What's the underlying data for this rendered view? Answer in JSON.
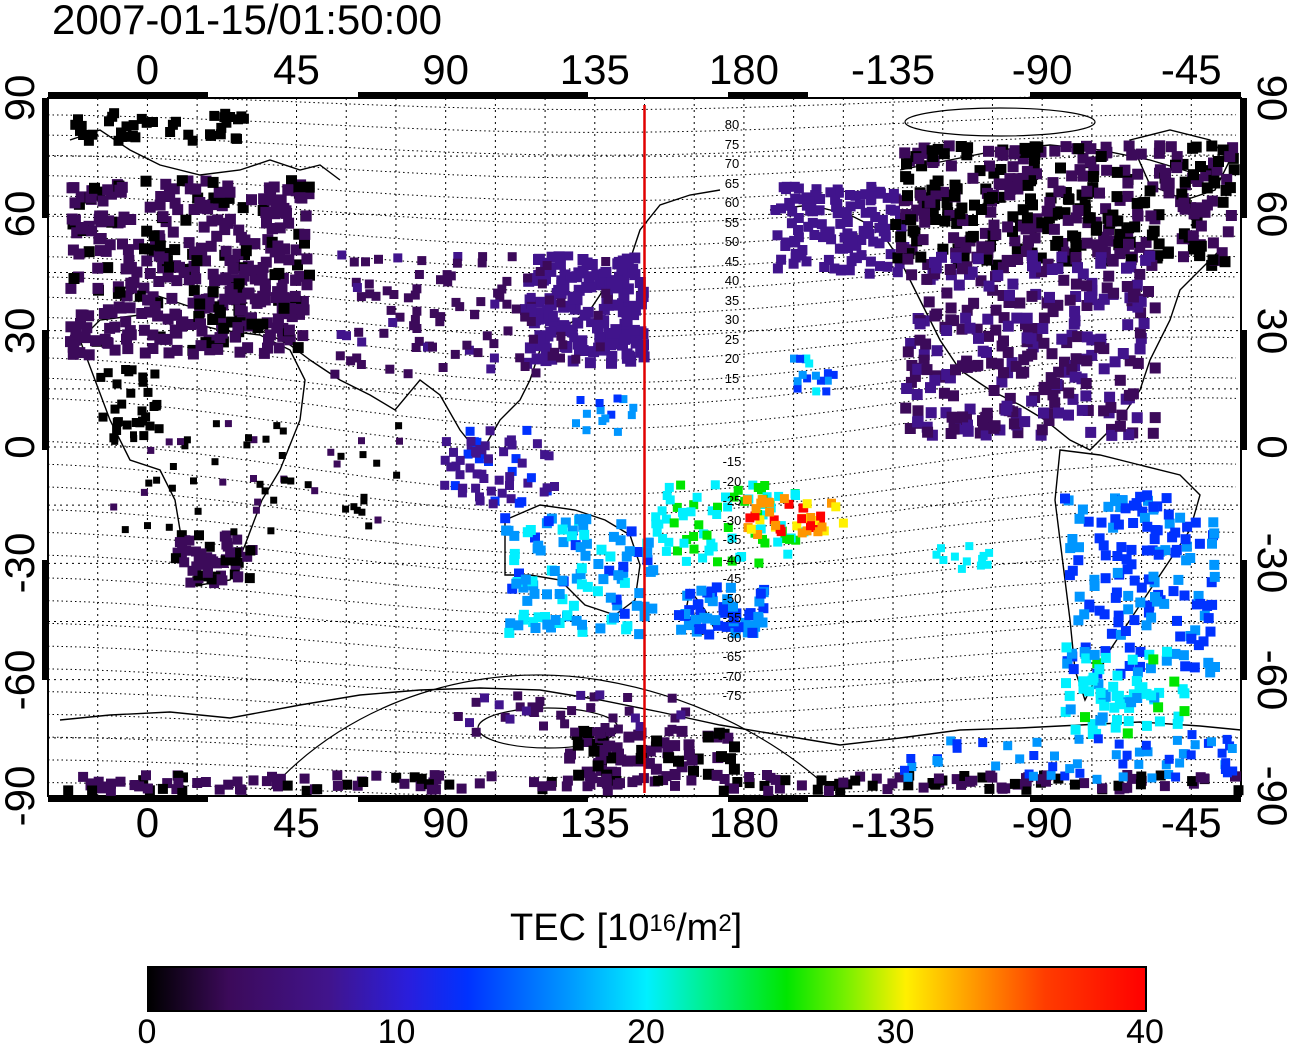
{
  "header": {
    "timestamp": "2007-01-15/01:50:00"
  },
  "map": {
    "lon_ticks_top": [
      "0",
      "45",
      "90",
      "135",
      "180",
      "-135",
      "-90",
      "-45"
    ],
    "lon_ticks_bottom": [
      "0",
      "45",
      "90",
      "135",
      "180",
      "-135",
      "-90",
      "-45"
    ],
    "lat_ticks_left": [
      "90",
      "60",
      "30",
      "0",
      "-30",
      "-60",
      "-90"
    ],
    "lat_ticks_right": [
      "90",
      "60",
      "30",
      "0",
      "-30",
      "-60",
      "-90"
    ],
    "contour_labels": [
      "80",
      "75",
      "70",
      "65",
      "60",
      "55",
      "50",
      "45",
      "40",
      "35",
      "30",
      "25",
      "20",
      "15",
      "-15",
      "-20",
      "-25",
      "-30",
      "-35",
      "-40",
      "-45",
      "-50",
      "-55",
      "-60",
      "-65",
      "-70",
      "-75"
    ],
    "meridian_marker": {
      "longitude": 150,
      "color": "#e00000"
    }
  },
  "colorbar": {
    "title_prefix": "TEC  [10",
    "title_exp": "16",
    "title_mid": "/m",
    "title_exp2": "2",
    "title_suffix": "]",
    "ticks": [
      "0",
      "10",
      "20",
      "30",
      "40"
    ],
    "min": 0,
    "max": 40,
    "colors": [
      "#000000",
      "#3c0a5a",
      "#41148c",
      "#0032ff",
      "#0096ff",
      "#00f0ff",
      "#00e600",
      "#fff000",
      "#ff9600",
      "#ff0000"
    ]
  }
}
